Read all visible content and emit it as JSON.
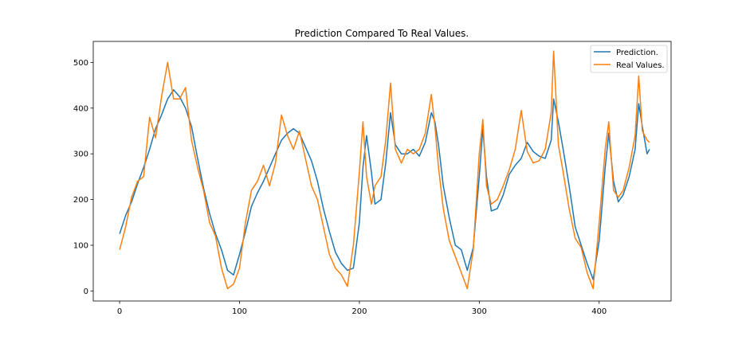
{
  "chart_data": {
    "type": "line",
    "title": "Prediction Compared To Real Values.",
    "xlabel": "",
    "ylabel": "",
    "xlim": [
      -22,
      460
    ],
    "ylim": [
      -22,
      546
    ],
    "xticks": [
      0,
      100,
      200,
      300,
      400
    ],
    "yticks": [
      0,
      100,
      200,
      300,
      400,
      500
    ],
    "grid": false,
    "legend_position": "top-right",
    "series": [
      {
        "name": "Prediction.",
        "color": "#1f77b4",
        "points": [
          [
            0,
            125
          ],
          [
            5,
            165
          ],
          [
            10,
            195
          ],
          [
            15,
            235
          ],
          [
            20,
            270
          ],
          [
            25,
            310
          ],
          [
            30,
            355
          ],
          [
            35,
            385
          ],
          [
            40,
            420
          ],
          [
            45,
            440
          ],
          [
            50,
            425
          ],
          [
            55,
            400
          ],
          [
            60,
            360
          ],
          [
            65,
            290
          ],
          [
            70,
            225
          ],
          [
            75,
            170
          ],
          [
            80,
            125
          ],
          [
            85,
            90
          ],
          [
            90,
            45
          ],
          [
            95,
            35
          ],
          [
            100,
            80
          ],
          [
            105,
            130
          ],
          [
            110,
            185
          ],
          [
            115,
            215
          ],
          [
            120,
            240
          ],
          [
            125,
            270
          ],
          [
            130,
            300
          ],
          [
            135,
            330
          ],
          [
            140,
            345
          ],
          [
            145,
            355
          ],
          [
            150,
            345
          ],
          [
            155,
            315
          ],
          [
            160,
            285
          ],
          [
            165,
            240
          ],
          [
            170,
            180
          ],
          [
            175,
            130
          ],
          [
            180,
            85
          ],
          [
            185,
            60
          ],
          [
            190,
            45
          ],
          [
            195,
            50
          ],
          [
            200,
            150
          ],
          [
            203,
            270
          ],
          [
            206,
            340
          ],
          [
            210,
            260
          ],
          [
            213,
            190
          ],
          [
            218,
            200
          ],
          [
            222,
            280
          ],
          [
            226,
            390
          ],
          [
            230,
            320
          ],
          [
            235,
            300
          ],
          [
            240,
            300
          ],
          [
            245,
            310
          ],
          [
            250,
            295
          ],
          [
            255,
            325
          ],
          [
            260,
            390
          ],
          [
            263,
            370
          ],
          [
            266,
            320
          ],
          [
            270,
            230
          ],
          [
            275,
            160
          ],
          [
            280,
            100
          ],
          [
            285,
            90
          ],
          [
            290,
            45
          ],
          [
            295,
            95
          ],
          [
            300,
            250
          ],
          [
            303,
            355
          ],
          [
            306,
            250
          ],
          [
            310,
            175
          ],
          [
            315,
            180
          ],
          [
            320,
            210
          ],
          [
            325,
            255
          ],
          [
            330,
            275
          ],
          [
            335,
            290
          ],
          [
            340,
            325
          ],
          [
            345,
            305
          ],
          [
            350,
            295
          ],
          [
            355,
            290
          ],
          [
            360,
            330
          ],
          [
            362,
            420
          ],
          [
            366,
            370
          ],
          [
            370,
            310
          ],
          [
            375,
            230
          ],
          [
            380,
            140
          ],
          [
            385,
            100
          ],
          [
            390,
            60
          ],
          [
            395,
            25
          ],
          [
            400,
            110
          ],
          [
            405,
            270
          ],
          [
            408,
            345
          ],
          [
            412,
            240
          ],
          [
            416,
            195
          ],
          [
            420,
            210
          ],
          [
            425,
            250
          ],
          [
            430,
            310
          ],
          [
            433,
            410
          ],
          [
            436,
            360
          ],
          [
            440,
            300
          ],
          [
            442,
            310
          ]
        ]
      },
      {
        "name": "Real Values.",
        "color": "#ff7f0e",
        "points": [
          [
            0,
            90
          ],
          [
            5,
            140
          ],
          [
            10,
            205
          ],
          [
            15,
            240
          ],
          [
            20,
            250
          ],
          [
            25,
            380
          ],
          [
            30,
            335
          ],
          [
            35,
            425
          ],
          [
            40,
            500
          ],
          [
            45,
            420
          ],
          [
            50,
            420
          ],
          [
            55,
            445
          ],
          [
            60,
            330
          ],
          [
            65,
            270
          ],
          [
            70,
            220
          ],
          [
            75,
            150
          ],
          [
            80,
            120
          ],
          [
            85,
            50
          ],
          [
            90,
            5
          ],
          [
            95,
            15
          ],
          [
            100,
            50
          ],
          [
            105,
            150
          ],
          [
            110,
            220
          ],
          [
            115,
            240
          ],
          [
            120,
            275
          ],
          [
            125,
            230
          ],
          [
            130,
            280
          ],
          [
            135,
            385
          ],
          [
            140,
            340
          ],
          [
            145,
            310
          ],
          [
            150,
            350
          ],
          [
            155,
            290
          ],
          [
            160,
            230
          ],
          [
            165,
            200
          ],
          [
            170,
            140
          ],
          [
            175,
            80
          ],
          [
            180,
            50
          ],
          [
            185,
            35
          ],
          [
            190,
            10
          ],
          [
            195,
            100
          ],
          [
            200,
            260
          ],
          [
            203,
            370
          ],
          [
            206,
            250
          ],
          [
            210,
            190
          ],
          [
            213,
            230
          ],
          [
            218,
            250
          ],
          [
            222,
            330
          ],
          [
            226,
            455
          ],
          [
            230,
            310
          ],
          [
            235,
            280
          ],
          [
            240,
            310
          ],
          [
            245,
            300
          ],
          [
            250,
            310
          ],
          [
            255,
            345
          ],
          [
            260,
            430
          ],
          [
            263,
            360
          ],
          [
            266,
            270
          ],
          [
            270,
            180
          ],
          [
            275,
            110
          ],
          [
            280,
            75
          ],
          [
            285,
            40
          ],
          [
            290,
            5
          ],
          [
            295,
            90
          ],
          [
            300,
            300
          ],
          [
            303,
            375
          ],
          [
            306,
            230
          ],
          [
            310,
            190
          ],
          [
            315,
            200
          ],
          [
            320,
            230
          ],
          [
            325,
            265
          ],
          [
            330,
            310
          ],
          [
            335,
            395
          ],
          [
            340,
            305
          ],
          [
            345,
            280
          ],
          [
            350,
            285
          ],
          [
            355,
            310
          ],
          [
            360,
            390
          ],
          [
            362,
            525
          ],
          [
            366,
            320
          ],
          [
            370,
            260
          ],
          [
            375,
            180
          ],
          [
            380,
            115
          ],
          [
            385,
            95
          ],
          [
            390,
            40
          ],
          [
            395,
            5
          ],
          [
            400,
            150
          ],
          [
            405,
            310
          ],
          [
            408,
            370
          ],
          [
            412,
            220
          ],
          [
            416,
            205
          ],
          [
            420,
            220
          ],
          [
            425,
            270
          ],
          [
            430,
            340
          ],
          [
            433,
            470
          ],
          [
            436,
            350
          ],
          [
            440,
            330
          ],
          [
            442,
            325
          ]
        ]
      }
    ]
  }
}
